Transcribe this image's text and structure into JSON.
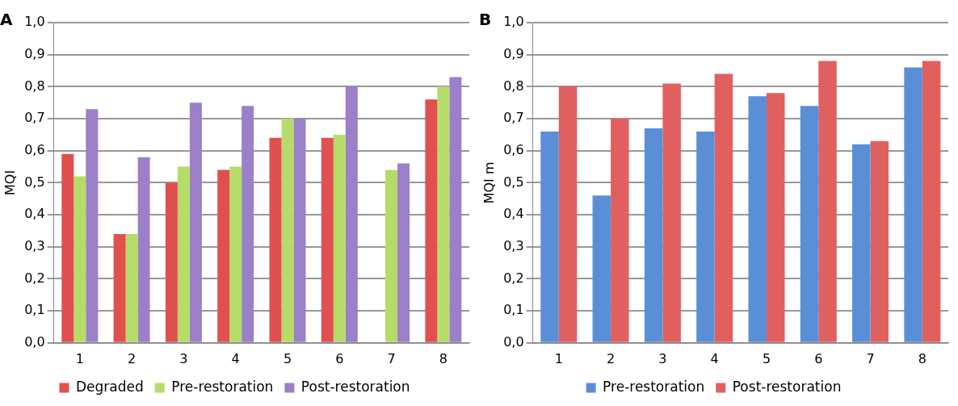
{
  "chart_data": [
    {
      "type": "bar",
      "title": "A",
      "ylabel": "MQI",
      "categories": [
        "1",
        "2",
        "3",
        "4",
        "5",
        "6",
        "7",
        "8"
      ],
      "series": [
        {
          "name": "Degraded",
          "color": "#e0504f",
          "values": [
            0.59,
            0.34,
            0.5,
            0.54,
            0.64,
            0.64,
            null,
            0.76
          ]
        },
        {
          "name": "Pre-restoration",
          "color": "#b5dc68",
          "values": [
            0.52,
            0.34,
            0.55,
            0.55,
            0.7,
            0.65,
            0.54,
            0.8
          ]
        },
        {
          "name": "Post-restoration",
          "color": "#9b7fc8",
          "values": [
            0.73,
            0.58,
            0.75,
            0.74,
            0.7,
            0.8,
            0.56,
            0.83
          ]
        }
      ],
      "ylim": [
        0,
        1
      ],
      "yticks": [
        {
          "value": 0,
          "label": "0,0"
        },
        {
          "value": 0.1,
          "label": "0,1"
        },
        {
          "value": 0.2,
          "label": "0,2"
        },
        {
          "value": 0.3,
          "label": "0,3"
        },
        {
          "value": 0.4,
          "label": "0,4"
        },
        {
          "value": 0.5,
          "label": "0,5"
        },
        {
          "value": 0.6,
          "label": "0,6"
        },
        {
          "value": 0.7,
          "label": "0,7"
        },
        {
          "value": 0.8,
          "label": "0,8"
        },
        {
          "value": 0.9,
          "label": "0,9"
        },
        {
          "value": 1,
          "label": "1,0"
        }
      ],
      "grid": "y",
      "legend": "bottom"
    },
    {
      "type": "bar",
      "title": "B",
      "ylabel": "MQI m",
      "categories": [
        "1",
        "2",
        "3",
        "4",
        "5",
        "6",
        "7",
        "8"
      ],
      "series": [
        {
          "name": "Pre-restoration",
          "color": "#5a8fd8",
          "values": [
            0.66,
            0.46,
            0.67,
            0.66,
            0.77,
            0.74,
            0.62,
            0.86
          ]
        },
        {
          "name": "Post-restoration",
          "color": "#e0605f",
          "values": [
            0.8,
            0.7,
            0.81,
            0.84,
            0.78,
            0.88,
            0.63,
            0.88
          ]
        }
      ],
      "ylim": [
        0,
        1
      ],
      "yticks": [
        {
          "value": 0,
          "label": "0,0"
        },
        {
          "value": 0.1,
          "label": "0,1"
        },
        {
          "value": 0.2,
          "label": "0,2"
        },
        {
          "value": 0.3,
          "label": "0,3"
        },
        {
          "value": 0.4,
          "label": "0,4"
        },
        {
          "value": 0.5,
          "label": "0,5"
        },
        {
          "value": 0.6,
          "label": "0,6"
        },
        {
          "value": 0.7,
          "label": "0,7"
        },
        {
          "value": 0.8,
          "label": "0,8"
        },
        {
          "value": 0.9,
          "label": "0,9"
        },
        {
          "value": 1,
          "label": "1,0"
        }
      ],
      "grid": "y",
      "legend": "bottom"
    }
  ]
}
